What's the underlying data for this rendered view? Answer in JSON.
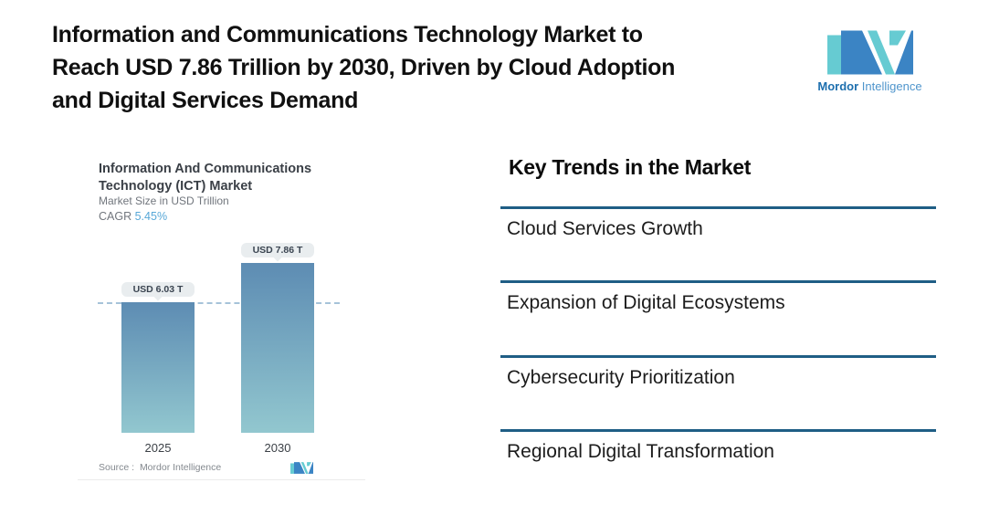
{
  "header": {
    "title_lines": [
      "Information and Communications Technology Market to",
      "Reach USD 7.86 Trillion by 2030, Driven by Cloud Adoption",
      "and Digital Services Demand"
    ]
  },
  "brand": {
    "name_bold": "Mordor",
    "name_regular": " Intelligence",
    "colors": {
      "blue": "#3b84c4",
      "teal": "#66cbd2",
      "text_bold": "#1d6fae",
      "text_regular": "#4f95cc"
    }
  },
  "chart_card": {
    "title_lines": [
      "Information And Communications",
      "Technology (ICT) Market"
    ],
    "subtitle": "Market Size in USD Trillion",
    "cagr_label": "CAGR",
    "cagr_value": "5.45%",
    "source_text": "Source :  Mordor Intelligence"
  },
  "chart_data": {
    "type": "bar",
    "title": "Information And Communications Technology (ICT) Market",
    "subtitle": "Market Size in USD Trillion",
    "unit": "USD Trillion",
    "cagr": "5.45%",
    "categories": [
      "2025",
      "2030"
    ],
    "values": [
      6.03,
      7.86
    ],
    "bar_labels": [
      "USD 6.03 T",
      "USD 7.86 T"
    ],
    "baseline_dashed_at": 6.03,
    "source": "Mordor Intelligence",
    "legend": "none",
    "gridlines": "off",
    "colors": {
      "bar_top": "#5d8cb3",
      "bar_bottom": "#92c7cf",
      "dashed_line": "#a6c3d9",
      "label_pill_bg": "#e9edef",
      "label_text": "#3a4450"
    }
  },
  "trends": {
    "heading": "Key Trends in the Market",
    "items": [
      "Cloud Services Growth",
      "Expansion of Digital Ecosystems",
      "Cybersecurity Prioritization",
      "Regional Digital Transformation"
    ],
    "rule_color": "#1f5e85"
  }
}
